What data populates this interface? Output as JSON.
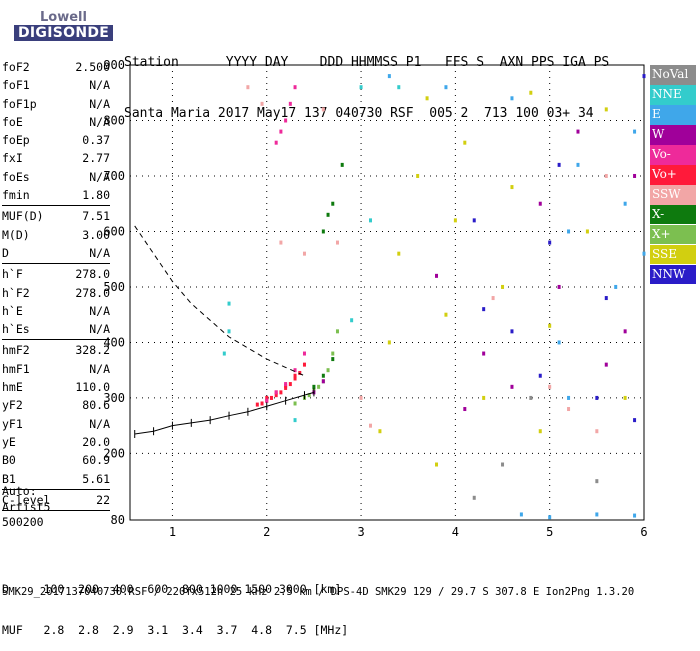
{
  "logo": {
    "line1": "Lowell",
    "line2": "DIGISONDE"
  },
  "header": {
    "line1": "Station      YYYY DAY    DDD HHMMSS P1   FFS S  AXN PPS IGA PS",
    "line2": "Santa Maria 2017 May17 137 040730 RSF  005 2  713 100 03+ 34"
  },
  "params": [
    {
      "label": "foF2",
      "value": "2.500"
    },
    {
      "label": "foF1",
      "value": "N/A"
    },
    {
      "label": "foF1p",
      "value": "N/A"
    },
    {
      "label": "foE",
      "value": "N/A"
    },
    {
      "label": "foEp",
      "value": "0.37"
    },
    {
      "label": "fxI",
      "value": "2.77"
    },
    {
      "label": "foEs",
      "value": "N/A"
    },
    {
      "label": "fmin",
      "value": "1.80"
    },
    {
      "sep": true
    },
    {
      "label": "MUF(D)",
      "value": "7.51"
    },
    {
      "label": "M(D)",
      "value": "3.00"
    },
    {
      "label": "D",
      "value": "N/A"
    },
    {
      "sep": true
    },
    {
      "label": "h`F",
      "value": "278.0"
    },
    {
      "label": "h`F2",
      "value": "278.0"
    },
    {
      "label": "h`E",
      "value": "N/A"
    },
    {
      "label": "h`Es",
      "value": "N/A"
    },
    {
      "sep": true
    },
    {
      "label": "hmF2",
      "value": "328.2"
    },
    {
      "label": "hmF1",
      "value": "N/A"
    },
    {
      "label": "hmE",
      "value": "110.0"
    },
    {
      "label": "yF2",
      "value": "80.6"
    },
    {
      "label": "yF1",
      "value": "N/A"
    },
    {
      "label": "yE",
      "value": "20.0"
    },
    {
      "label": "B0",
      "value": "60.9"
    },
    {
      "label": "B1",
      "value": "5.61"
    },
    {
      "sep": true
    },
    {
      "label": "C-level",
      "value": "22"
    },
    {
      "sep": true
    }
  ],
  "auto": {
    "line1": "Auto:",
    "line2": "Artist5",
    "line3": "500200"
  },
  "legend": [
    {
      "label": "NoVal",
      "color": "#8c8c8c"
    },
    {
      "label": "NNE",
      "color": "#33cccc"
    },
    {
      "label": "E",
      "color": "#3fa7ea"
    },
    {
      "label": "W",
      "color": "#a0009a"
    },
    {
      "label": "Vo-",
      "color": "#ee2a9a"
    },
    {
      "label": "Vo+",
      "color": "#ff1a3a"
    },
    {
      "label": "SSW",
      "color": "#f2a6a6"
    },
    {
      "label": "X-",
      "color": "#0e7a0e"
    },
    {
      "label": "X+",
      "color": "#7cbf50"
    },
    {
      "label": "SSE",
      "color": "#d2cf10"
    },
    {
      "label": "NNW",
      "color": "#2a1cc8"
    }
  ],
  "footer": {
    "line1": "D     100  200  400  600  800 1000 1500 3000 [km]",
    "line2": "MUF   2.8  2.8  2.9  3.1  3.4  3.7  4.8  7.5 [MHz]",
    "line3": "SMK29_2017137040730.RSF / 220fx512h 25 kHz 2.5 km / DPS-4D SMK29 129 / 29.7 S 307.8 E Ion2Png 1.3.20"
  },
  "chart_data": {
    "type": "scatter",
    "xlim": [
      0.55,
      6
    ],
    "ylim": [
      80,
      900
    ],
    "x_ticks": [
      1,
      2,
      3,
      4,
      5,
      6
    ],
    "y_ticks": [
      80,
      200,
      300,
      400,
      500,
      600,
      700,
      800,
      900
    ],
    "series": [
      {
        "name": "Vo+",
        "color": "#ff1a3a",
        "points": [
          [
            1.95,
            290
          ],
          [
            2.0,
            295
          ],
          [
            2.05,
            300
          ],
          [
            2.1,
            305
          ],
          [
            2.15,
            310
          ],
          [
            2.2,
            318
          ],
          [
            2.25,
            325
          ],
          [
            2.3,
            335
          ],
          [
            2.35,
            345
          ],
          [
            2.4,
            360
          ],
          [
            2.0,
            300
          ],
          [
            2.1,
            310
          ],
          [
            2.2,
            322
          ],
          [
            2.3,
            340
          ],
          [
            1.9,
            288
          ]
        ]
      },
      {
        "name": "Vo-",
        "color": "#ee2a9a",
        "points": [
          [
            2.0,
            295
          ],
          [
            2.1,
            310
          ],
          [
            2.2,
            325
          ],
          [
            2.3,
            350
          ],
          [
            2.4,
            380
          ],
          [
            2.1,
            760
          ],
          [
            2.15,
            780
          ],
          [
            2.2,
            800
          ],
          [
            2.25,
            830
          ],
          [
            2.3,
            860
          ]
        ]
      },
      {
        "name": "X+",
        "color": "#7cbf50",
        "points": [
          [
            2.3,
            290
          ],
          [
            2.4,
            300
          ],
          [
            2.5,
            315
          ],
          [
            2.6,
            330
          ],
          [
            2.65,
            350
          ],
          [
            2.7,
            380
          ],
          [
            2.75,
            420
          ],
          [
            2.55,
            320
          ],
          [
            2.45,
            305
          ]
        ]
      },
      {
        "name": "X-",
        "color": "#0e7a0e",
        "points": [
          [
            2.6,
            600
          ],
          [
            2.65,
            630
          ],
          [
            2.7,
            650
          ],
          [
            2.5,
            320
          ],
          [
            2.6,
            340
          ],
          [
            2.7,
            370
          ],
          [
            2.8,
            720
          ]
        ]
      },
      {
        "name": "W",
        "color": "#a0009a",
        "points": [
          [
            2.5,
            310
          ],
          [
            2.6,
            330
          ],
          [
            3.8,
            520
          ],
          [
            4.3,
            380
          ],
          [
            4.6,
            320
          ],
          [
            4.9,
            650
          ],
          [
            5.1,
            500
          ],
          [
            5.3,
            780
          ],
          [
            5.6,
            360
          ],
          [
            5.8,
            420
          ],
          [
            5.9,
            700
          ],
          [
            4.1,
            280
          ]
        ]
      },
      {
        "name": "SSE",
        "color": "#d2cf10",
        "points": [
          [
            3.2,
            240
          ],
          [
            3.3,
            400
          ],
          [
            3.4,
            560
          ],
          [
            3.6,
            700
          ],
          [
            3.8,
            180
          ],
          [
            3.9,
            450
          ],
          [
            4.0,
            620
          ],
          [
            4.1,
            760
          ],
          [
            4.3,
            300
          ],
          [
            4.5,
            500
          ],
          [
            4.6,
            680
          ],
          [
            4.9,
            240
          ],
          [
            5.0,
            430
          ],
          [
            5.4,
            600
          ],
          [
            5.6,
            820
          ],
          [
            5.8,
            300
          ],
          [
            3.7,
            840
          ],
          [
            4.8,
            850
          ]
        ]
      },
      {
        "name": "E",
        "color": "#3fa7ea",
        "points": [
          [
            3.3,
            880
          ],
          [
            3.9,
            860
          ],
          [
            4.6,
            840
          ],
          [
            5.1,
            400
          ],
          [
            5.2,
            600
          ],
          [
            5.3,
            720
          ],
          [
            5.7,
            500
          ],
          [
            5.8,
            650
          ],
          [
            5.9,
            780
          ],
          [
            6.0,
            560
          ],
          [
            4.7,
            90
          ],
          [
            5.0,
            85
          ],
          [
            5.5,
            90
          ],
          [
            5.9,
            88
          ],
          [
            5.2,
            300
          ]
        ]
      },
      {
        "name": "NNE",
        "color": "#33cccc",
        "points": [
          [
            1.55,
            380
          ],
          [
            1.6,
            420
          ],
          [
            1.6,
            470
          ],
          [
            2.3,
            260
          ],
          [
            2.9,
            440
          ],
          [
            3.0,
            860
          ],
          [
            3.1,
            620
          ],
          [
            3.4,
            860
          ]
        ]
      },
      {
        "name": "SSW",
        "color": "#f2a6a6",
        "points": [
          [
            1.8,
            860
          ],
          [
            1.95,
            830
          ],
          [
            2.15,
            580
          ],
          [
            2.6,
            820
          ],
          [
            2.75,
            580
          ],
          [
            3.0,
            300
          ],
          [
            3.1,
            250
          ],
          [
            4.4,
            480
          ],
          [
            5.0,
            320
          ],
          [
            5.2,
            280
          ],
          [
            5.5,
            240
          ],
          [
            5.6,
            700
          ],
          [
            2.4,
            560
          ]
        ]
      },
      {
        "name": "NNW",
        "color": "#2a1cc8",
        "points": [
          [
            4.2,
            620
          ],
          [
            4.3,
            460
          ],
          [
            4.6,
            420
          ],
          [
            4.9,
            340
          ],
          [
            5.0,
            580
          ],
          [
            5.1,
            720
          ],
          [
            5.5,
            300
          ],
          [
            5.6,
            480
          ],
          [
            5.9,
            260
          ],
          [
            6.0,
            880
          ]
        ]
      },
      {
        "name": "NoVal",
        "color": "#8c8c8c",
        "points": [
          [
            4.2,
            120
          ],
          [
            4.5,
            180
          ],
          [
            4.8,
            300
          ],
          [
            5.5,
            150
          ]
        ]
      }
    ],
    "profile_points": [
      [
        0.6,
        235
      ],
      [
        0.8,
        240
      ],
      [
        1.0,
        250
      ],
      [
        1.2,
        255
      ],
      [
        1.4,
        260
      ],
      [
        1.6,
        268
      ],
      [
        1.8,
        275
      ],
      [
        2.0,
        285
      ],
      [
        2.2,
        295
      ],
      [
        2.4,
        305
      ],
      [
        2.5,
        310
      ]
    ],
    "annotations_dashed": [
      [
        0.6,
        610
      ],
      [
        0.8,
        560
      ],
      [
        1.0,
        510
      ],
      [
        1.2,
        470
      ],
      [
        1.4,
        440
      ],
      [
        1.6,
        410
      ],
      [
        1.8,
        390
      ],
      [
        2.0,
        370
      ],
      [
        2.2,
        355
      ],
      [
        2.4,
        340
      ]
    ]
  }
}
